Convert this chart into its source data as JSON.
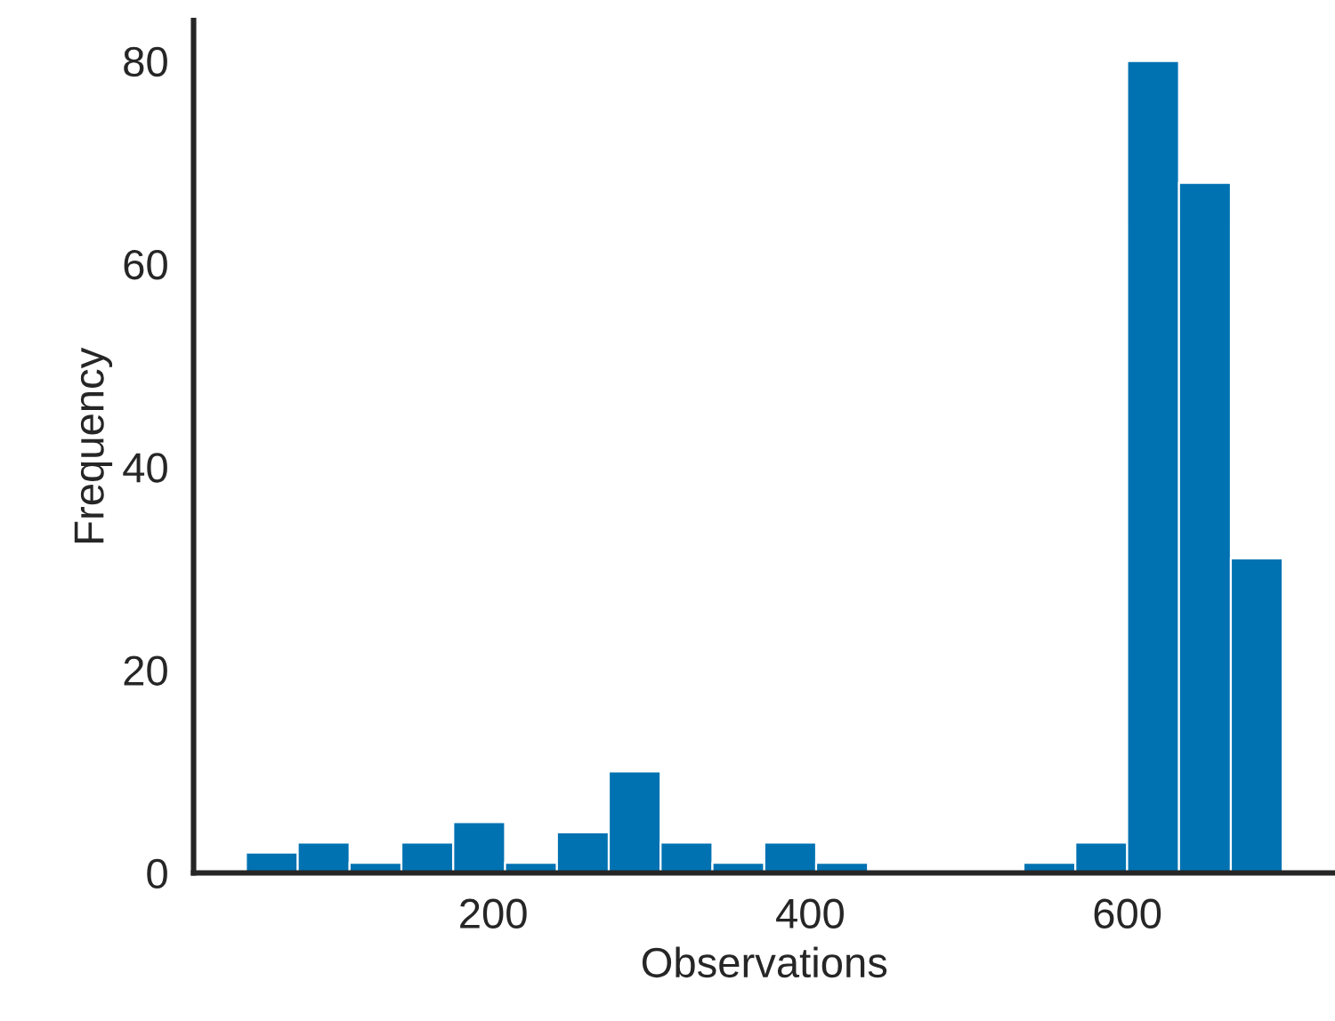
{
  "chart_data": {
    "type": "histogram",
    "xlabel": "Observations",
    "ylabel": "Frequency",
    "bins": [
      44,
      76.7,
      109.4,
      142.1,
      174.8,
      207.5,
      240.2,
      272.9,
      305.6,
      338.3,
      371,
      403.7,
      436.4,
      469.1,
      501.8,
      534.5,
      567.2,
      599.9,
      632.6,
      665.3,
      698
    ],
    "values": [
      2,
      3,
      1,
      3,
      5,
      1,
      4,
      10,
      3,
      1,
      3,
      1,
      0,
      0,
      0,
      1,
      3,
      80,
      68,
      31
    ],
    "color": "#0072b2",
    "xlim": [
      11,
      731
    ],
    "ylim": [
      0,
      84
    ],
    "xticks": [
      200,
      400,
      600
    ],
    "yticks": [
      0,
      20,
      40,
      60,
      80
    ],
    "grid": false
  }
}
